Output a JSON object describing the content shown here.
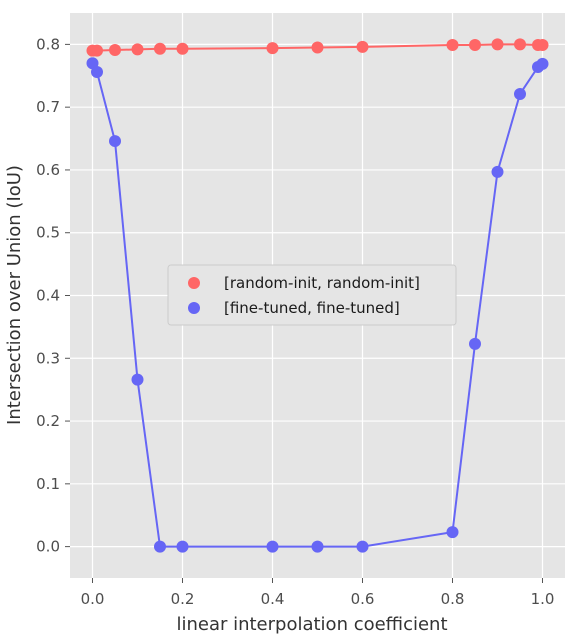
{
  "chart_data": {
    "type": "line",
    "xlabel": "linear interpolation coefficient",
    "ylabel": "Intersection over Union (IoU)",
    "xlim": [
      -0.05,
      1.05
    ],
    "ylim": [
      -0.05,
      0.85
    ],
    "xticks": [
      0.0,
      0.2,
      0.4,
      0.6,
      0.8,
      1.0
    ],
    "xtick_labels": [
      "0.0",
      "0.2",
      "0.4",
      "0.6",
      "0.8",
      "1.0"
    ],
    "yticks": [
      0.0,
      0.1,
      0.2,
      0.3,
      0.4,
      0.5,
      0.6,
      0.7,
      0.8
    ],
    "ytick_labels": [
      "0.0",
      "0.1",
      "0.2",
      "0.3",
      "0.4",
      "0.5",
      "0.6",
      "0.7",
      "0.8"
    ],
    "grid": true,
    "legend_position": "center",
    "series": [
      {
        "name": "[random-init, random-init]",
        "color": "#ff6666",
        "x": [
          0.0,
          0.01,
          0.05,
          0.1,
          0.15,
          0.2,
          0.4,
          0.5,
          0.6,
          0.8,
          0.85,
          0.9,
          0.95,
          0.99,
          1.0
        ],
        "y": [
          0.79,
          0.79,
          0.791,
          0.792,
          0.793,
          0.793,
          0.794,
          0.795,
          0.796,
          0.799,
          0.799,
          0.8,
          0.8,
          0.799,
          0.799
        ]
      },
      {
        "name": "[fine-tuned, fine-tuned]",
        "color": "#6666f5",
        "x": [
          0.0,
          0.01,
          0.05,
          0.1,
          0.15,
          0.2,
          0.4,
          0.5,
          0.6,
          0.8,
          0.85,
          0.9,
          0.95,
          0.99,
          1.0
        ],
        "y": [
          0.77,
          0.756,
          0.646,
          0.266,
          0.0,
          0.0,
          0.0,
          0.0,
          0.0,
          0.023,
          0.323,
          0.597,
          0.721,
          0.764,
          0.769
        ]
      }
    ]
  }
}
